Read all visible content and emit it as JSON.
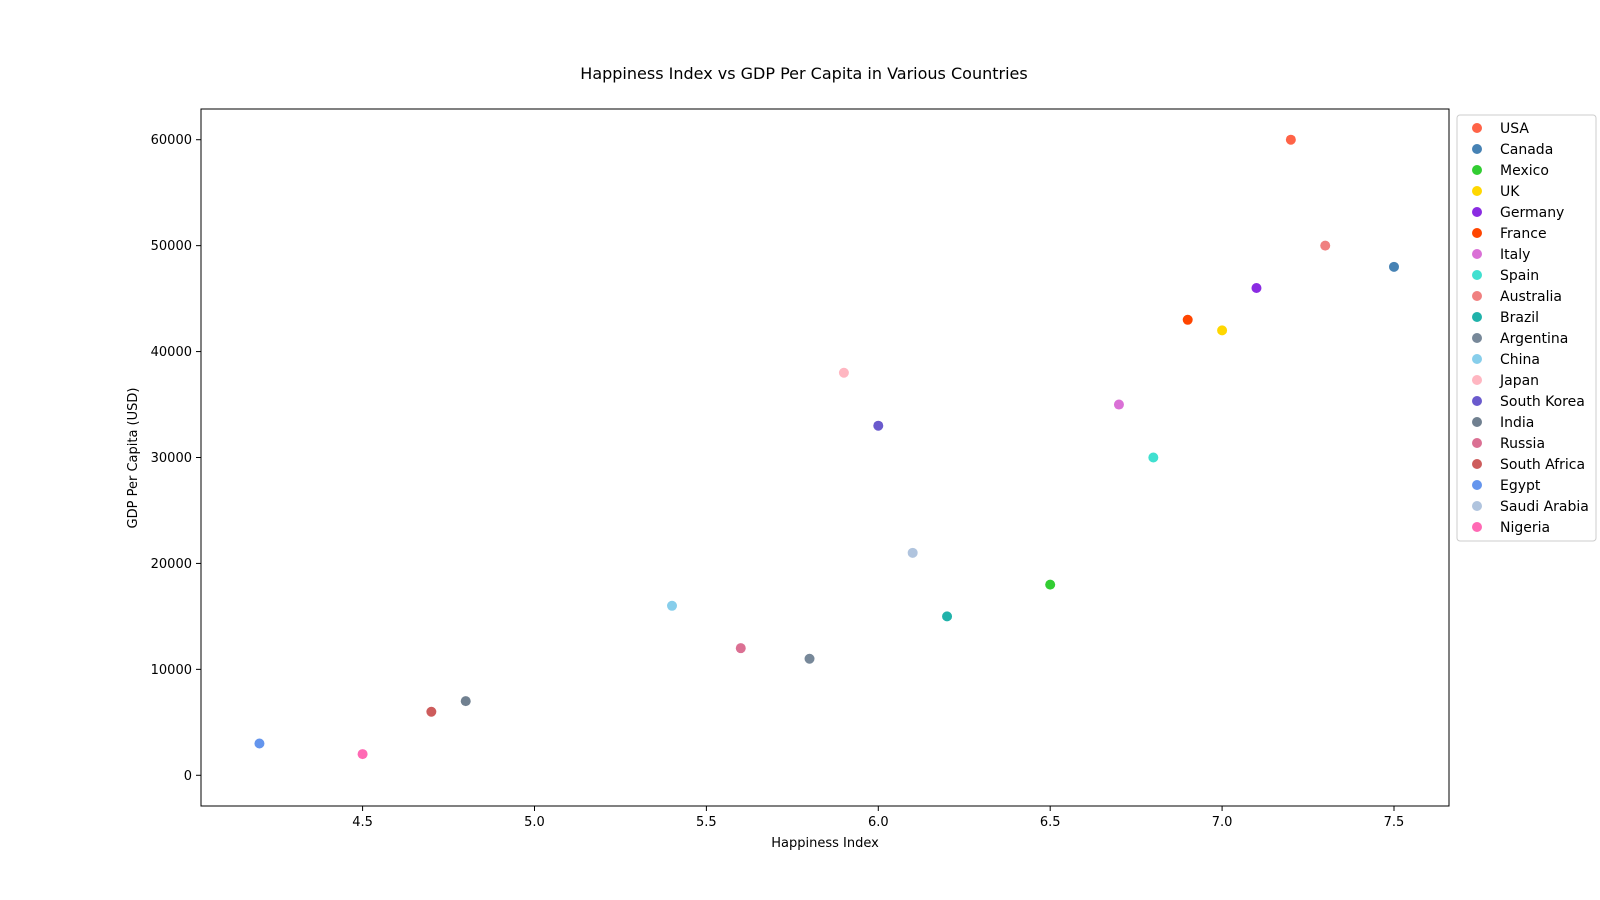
{
  "chart_data": {
    "type": "scatter",
    "title": "Happiness Index vs GDP Per Capita in Various Countries",
    "xlabel": "Happiness Index",
    "ylabel": "GDP Per Capita (USD)",
    "xlim": [
      4.03,
      7.66
    ],
    "ylim": [
      -2900,
      62900
    ],
    "x_ticks": [
      "4.5",
      "5.0",
      "5.5",
      "6.0",
      "6.5",
      "7.0",
      "7.5"
    ],
    "y_ticks": [
      "0",
      "10000",
      "20000",
      "30000",
      "40000",
      "50000",
      "60000"
    ],
    "grid": false,
    "legend_position": "outside-right",
    "series": [
      {
        "name": "USA",
        "color": "#ff6347",
        "x": 7.2,
        "y": 60000
      },
      {
        "name": "Canada",
        "color": "#4682b4",
        "x": 7.5,
        "y": 48000
      },
      {
        "name": "Mexico",
        "color": "#32cd32",
        "x": 6.5,
        "y": 18000
      },
      {
        "name": "UK",
        "color": "#ffd700",
        "x": 7.0,
        "y": 42000
      },
      {
        "name": "Germany",
        "color": "#8a2be2",
        "x": 7.1,
        "y": 46000
      },
      {
        "name": "France",
        "color": "#ff4500",
        "x": 6.9,
        "y": 43000
      },
      {
        "name": "Italy",
        "color": "#da70d6",
        "x": 6.7,
        "y": 35000
      },
      {
        "name": "Spain",
        "color": "#40e0d0",
        "x": 6.8,
        "y": 30000
      },
      {
        "name": "Australia",
        "color": "#f08080",
        "x": 7.3,
        "y": 50000
      },
      {
        "name": "Brazil",
        "color": "#20b2aa",
        "x": 6.2,
        "y": 15000
      },
      {
        "name": "Argentina",
        "color": "#778899",
        "x": 5.8,
        "y": 11000
      },
      {
        "name": "China",
        "color": "#87ceeb",
        "x": 5.4,
        "y": 16000
      },
      {
        "name": "Japan",
        "color": "#ffb6c1",
        "x": 5.9,
        "y": 38000
      },
      {
        "name": "South Korea",
        "color": "#6a5acd",
        "x": 6.0,
        "y": 33000
      },
      {
        "name": "India",
        "color": "#708090",
        "x": 4.8,
        "y": 7000
      },
      {
        "name": "Russia",
        "color": "#db7093",
        "x": 5.6,
        "y": 12000
      },
      {
        "name": "South Africa",
        "color": "#cd5c5c",
        "x": 4.7,
        "y": 6000
      },
      {
        "name": "Egypt",
        "color": "#6495ed",
        "x": 4.2,
        "y": 3000
      },
      {
        "name": "Saudi Arabia",
        "color": "#b0c4de",
        "x": 6.1,
        "y": 21000
      },
      {
        "name": "Nigeria",
        "color": "#ff69b4",
        "x": 4.5,
        "y": 2000
      }
    ]
  }
}
